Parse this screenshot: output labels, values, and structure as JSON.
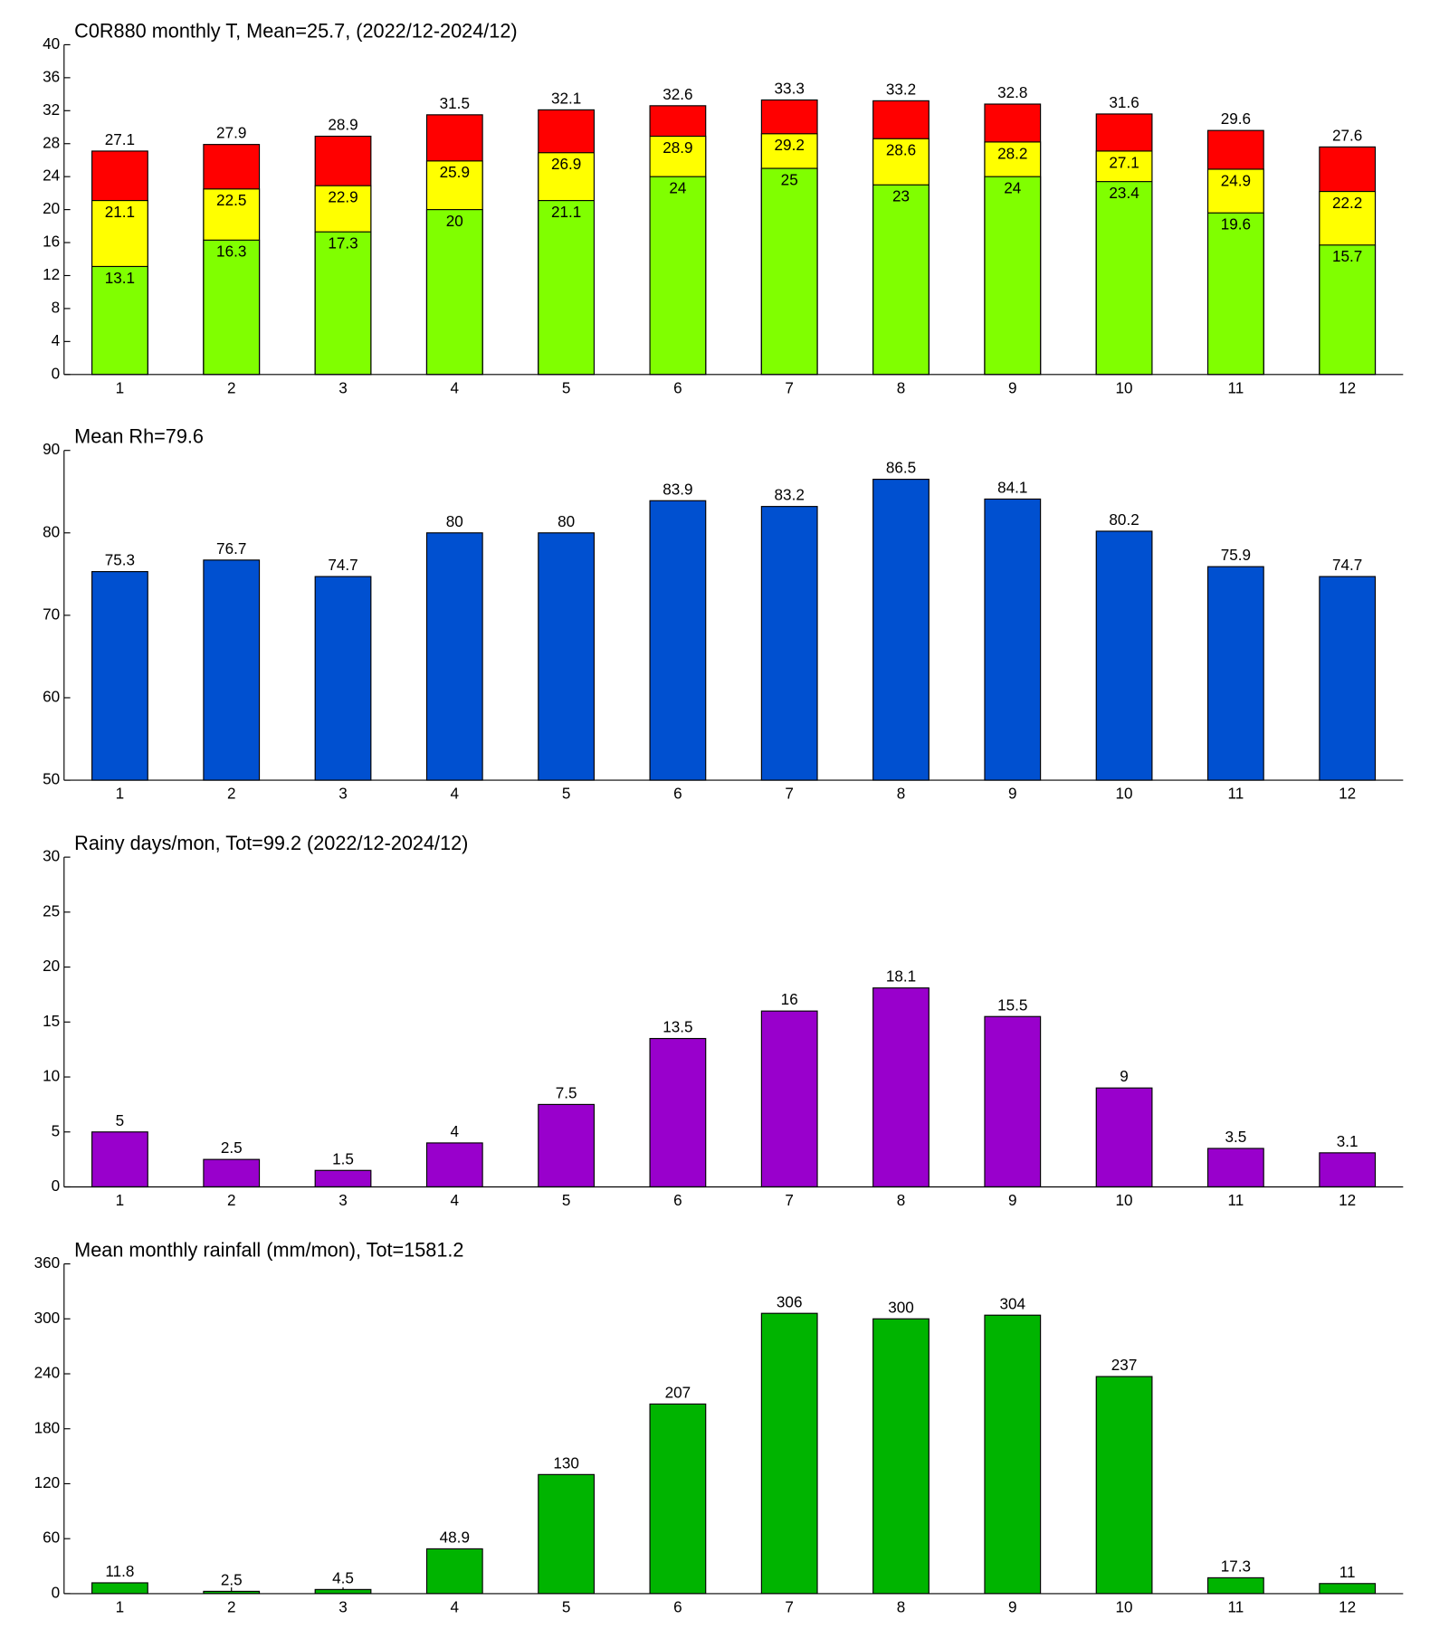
{
  "chart_data": [
    {
      "type": "overlay-bar",
      "title": "C0R880 monthly T, Mean=25.7, (2022/12-2024/12)",
      "categories": [
        "1",
        "2",
        "3",
        "4",
        "5",
        "6",
        "7",
        "8",
        "9",
        "10",
        "11",
        "12"
      ],
      "series": [
        {
          "color": "#ff0000",
          "values": [
            27.1,
            27.9,
            28.9,
            31.5,
            32.1,
            32.6,
            33.3,
            33.2,
            32.8,
            31.6,
            29.6,
            27.6
          ]
        },
        {
          "color": "#ffff00",
          "values": [
            21.1,
            22.5,
            22.9,
            25.9,
            26.9,
            28.9,
            29.2,
            28.6,
            28.2,
            27.1,
            24.9,
            22.2
          ]
        },
        {
          "color": "#80ff00",
          "values": [
            13.1,
            16.3,
            17.3,
            20,
            21.1,
            24,
            25,
            23,
            24,
            23.4,
            19.6,
            15.7
          ]
        }
      ],
      "ylim": [
        0,
        40
      ],
      "yticks": [
        0,
        4,
        8,
        12,
        16,
        20,
        24,
        28,
        32,
        36,
        40
      ]
    },
    {
      "type": "bar",
      "title": "Mean Rh=79.6",
      "categories": [
        "1",
        "2",
        "3",
        "4",
        "5",
        "6",
        "7",
        "8",
        "9",
        "10",
        "11",
        "12"
      ],
      "values": [
        75.3,
        76.7,
        74.7,
        80,
        80,
        83.9,
        83.2,
        86.5,
        84.1,
        80.2,
        75.9,
        74.7
      ],
      "color": "#0050d0",
      "ylim": [
        50,
        90
      ],
      "yticks": [
        50,
        60,
        70,
        80,
        90
      ]
    },
    {
      "type": "bar",
      "title": "Rainy days/mon, Tot=99.2 (2022/12-2024/12)",
      "categories": [
        "1",
        "2",
        "3",
        "4",
        "5",
        "6",
        "7",
        "8",
        "9",
        "10",
        "11",
        "12"
      ],
      "values": [
        5,
        2.5,
        1.5,
        4,
        7.5,
        13.5,
        16,
        18.1,
        15.5,
        9,
        3.5,
        3.1
      ],
      "color": "#9900cc",
      "ylim": [
        0,
        30
      ],
      "yticks": [
        0,
        5,
        10,
        15,
        20,
        25,
        30
      ]
    },
    {
      "type": "bar",
      "title": "Mean monthly rainfall (mm/mon), Tot=1581.2",
      "categories": [
        "1",
        "2",
        "3",
        "4",
        "5",
        "6",
        "7",
        "8",
        "9",
        "10",
        "11",
        "12"
      ],
      "values": [
        11.8,
        2.5,
        4.5,
        48.9,
        130,
        207,
        306,
        300,
        304,
        237,
        17.3,
        11
      ],
      "color": "#00b400",
      "ylim": [
        0,
        360
      ],
      "yticks": [
        0,
        60,
        120,
        180,
        240,
        300,
        360
      ]
    }
  ]
}
